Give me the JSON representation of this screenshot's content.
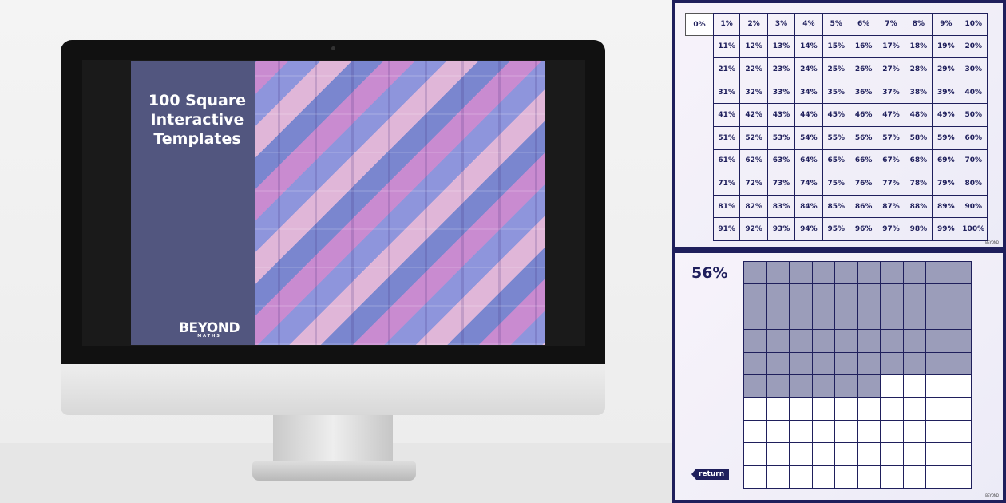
{
  "monitor_slide": {
    "title_lines": [
      "100 Square",
      "Interactive",
      "Templates"
    ],
    "logo": "BEYOND",
    "logo_sub": "MATHS"
  },
  "percent_grid": {
    "zero_label": "0%",
    "brand": "BEYOND"
  },
  "shading_panel": {
    "percent_label": "56%",
    "filled_count": 56,
    "return_label": "return",
    "brand": "BEYOND",
    "fill_color": "#9b9dba"
  },
  "colors": {
    "navy": "#1f1f5c",
    "slide_panel": "#52567f"
  }
}
